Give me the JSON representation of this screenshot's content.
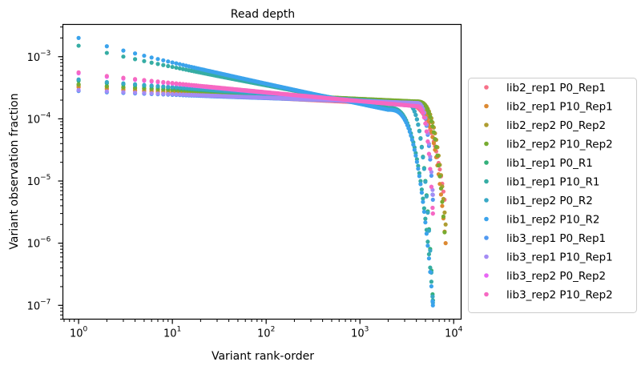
{
  "chart_data": {
    "type": "scatter",
    "title": "Read depth",
    "xlabel": "Variant rank-order",
    "ylabel": "Variant observation fraction",
    "x_scale": "log",
    "y_scale": "log",
    "xlim": [
      0.68,
      12000
    ],
    "ylim": [
      6e-08,
      0.0033
    ],
    "x_ticks": [
      {
        "value": 1,
        "base": "10",
        "exp": "0"
      },
      {
        "value": 10,
        "base": "10",
        "exp": "1"
      },
      {
        "value": 100,
        "base": "10",
        "exp": "2"
      },
      {
        "value": 1000,
        "base": "10",
        "exp": "3"
      },
      {
        "value": 10000,
        "base": "10",
        "exp": "4"
      }
    ],
    "y_ticks": [
      {
        "value": 1e-07,
        "base": "10",
        "exp": "−7"
      },
      {
        "value": 1e-06,
        "base": "10",
        "exp": "−6"
      },
      {
        "value": 1e-05,
        "base": "10",
        "exp": "−5"
      },
      {
        "value": 0.0001,
        "base": "10",
        "exp": "−4"
      },
      {
        "value": 0.001,
        "base": "10",
        "exp": "−3"
      }
    ],
    "grid": false,
    "legend_position": "right",
    "series": [
      {
        "name": "lib2_rep1 P0_Rep1",
        "color": "#f77189",
        "first": 0.00032,
        "decay": 0.09,
        "plateau_end": 3000,
        "plateau_y": 0.00017,
        "n": 8000,
        "min": 5e-06
      },
      {
        "name": "lib2_rep1 P10_Rep1",
        "color": "#dc8932",
        "first": 0.00033,
        "decay": 0.09,
        "plateau_end": 3500,
        "plateau_y": 0.00018,
        "n": 8200,
        "min": 1e-06
      },
      {
        "name": "lib2_rep2 P0_Rep2",
        "color": "#ae9d31",
        "first": 0.00035,
        "decay": 0.09,
        "plateau_end": 4000,
        "plateau_y": 0.00019,
        "n": 8200,
        "min": 2e-06
      },
      {
        "name": "lib2_rep2 P10_Rep2",
        "color": "#77ab31",
        "first": 0.00036,
        "decay": 0.09,
        "plateau_end": 4000,
        "plateau_y": 0.00019,
        "n": 8000,
        "min": 1.5e-06
      },
      {
        "name": "lib1_rep1 P0_R1",
        "color": "#33b07a",
        "first": 0.00041,
        "decay": 0.12,
        "plateau_end": 3000,
        "plateau_y": 0.00018,
        "n": 6000,
        "min": 1.2e-07
      },
      {
        "name": "lib1_rep1 P10_R1",
        "color": "#36ada4",
        "first": 0.0015,
        "decay": 0.34,
        "plateau_end": 2000,
        "plateau_y": 0.00015,
        "n": 6000,
        "min": 1.2e-07
      },
      {
        "name": "lib1_rep2 P0_R2",
        "color": "#38a9c5",
        "first": 0.00043,
        "decay": 0.12,
        "plateau_end": 3000,
        "plateau_y": 0.00018,
        "n": 6000,
        "min": 1.1e-07
      },
      {
        "name": "lib1_rep2 P10_R2",
        "color": "#3ba3ec",
        "first": 0.002,
        "decay": 0.36,
        "plateau_end": 2000,
        "plateau_y": 0.00014,
        "n": 6000,
        "min": 1e-07
      },
      {
        "name": "lib3_rep1 P0_Rep1",
        "color": "#5199f1",
        "first": 0.00028,
        "decay": 0.06,
        "plateau_end": 4000,
        "plateau_y": 0.00018,
        "n": 6000,
        "min": 5e-06
      },
      {
        "name": "lib3_rep1 P10_Rep1",
        "color": "#a48cf4",
        "first": 0.00029,
        "decay": 0.06,
        "plateau_end": 4000,
        "plateau_y": 0.00018,
        "n": 6000,
        "min": 6e-06
      },
      {
        "name": "lib3_rep2 P0_Rep2",
        "color": "#e866f4",
        "first": 0.00054,
        "decay": 0.16,
        "plateau_end": 4000,
        "plateau_y": 0.00016,
        "n": 6000,
        "min": 3e-06
      },
      {
        "name": "lib3_rep2 P10_Rep2",
        "color": "#f668c2",
        "first": 0.00056,
        "decay": 0.16,
        "plateau_end": 4000,
        "plateau_y": 0.00016,
        "n": 6000,
        "min": 3e-06
      }
    ]
  }
}
